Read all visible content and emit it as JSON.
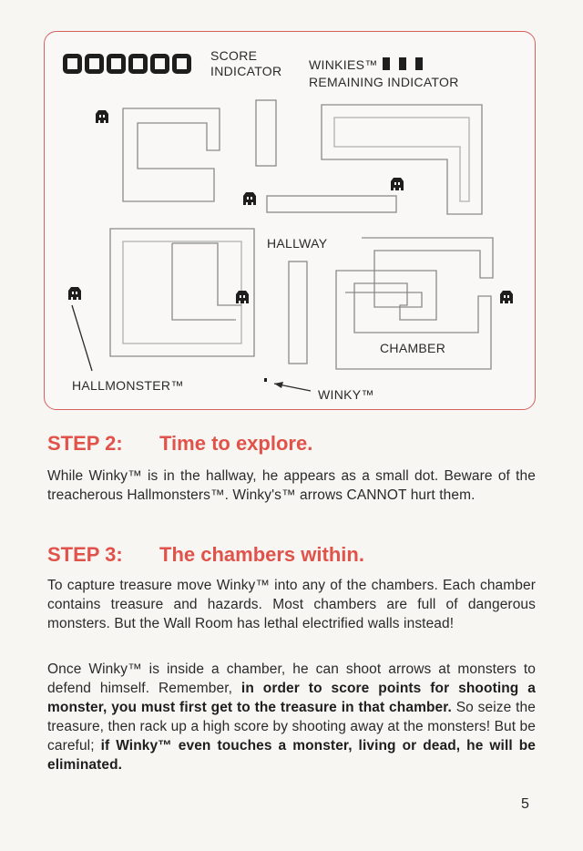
{
  "diagram": {
    "score_label_1": "SCORE",
    "score_label_2": "INDICATOR",
    "winkies_label": "WINKIES™",
    "remaining_label": "REMAINING INDICATOR",
    "lives_count": 3,
    "score_digits_count": 6,
    "hallway_label": "HALLWAY",
    "chamber_label": "CHAMBER",
    "hallmonster_label": "HALLMONSTER™",
    "winky_label": "WINKY™",
    "accent_color": "#e0524a"
  },
  "step2": {
    "step": "STEP 2:",
    "title": "Time to explore.",
    "text": "While Winky™ is in the hallway, he appears as a small dot. Beware of the treacherous Hallmonsters™. Winky's™ arrows CANNOT hurt them."
  },
  "step3": {
    "step": "STEP 3:",
    "title": "The chambers within.",
    "text1": "To capture treasure move Winky™ into any of the chambers. Each chamber contains treasure and hazards. Most chambers are full of dangerous monsters. But the Wall Room has lethal electrified walls instead!",
    "text2_a": "Once Winky™ is inside a chamber, he can shoot arrows at monsters to defend himself. Remember, ",
    "text2_b": "in order to score points for shooting a monster, you must first get to the treasure in that chamber.",
    "text2_c": " So seize the treasure, then rack up a high score by shooting away at the monsters! But be careful; ",
    "text2_d": "if Winky™ even touches a monster, living or dead, he will be eliminated."
  },
  "page_number": "5"
}
